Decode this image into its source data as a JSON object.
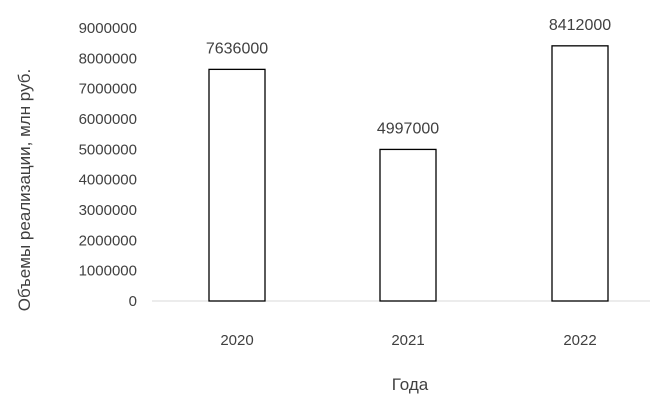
{
  "chart_data": {
    "type": "bar",
    "categories": [
      "2020",
      "2021",
      "2022"
    ],
    "values": [
      7636000,
      4997000,
      8412000
    ],
    "data_labels": [
      "7636000",
      "4997000",
      "8412000"
    ],
    "xlabel": "Года",
    "ylabel": "Объемы реализации, млн руб.",
    "ylim": [
      0,
      9000000
    ],
    "yticks": [
      "0",
      "1000000",
      "2000000",
      "3000000",
      "4000000",
      "5000000",
      "6000000",
      "7000000",
      "8000000",
      "9000000"
    ],
    "grid": false,
    "legend": "none",
    "colors": {
      "bar_fill": "#ffffff",
      "bar_stroke": "#000000",
      "text": "#404040",
      "axis": "#d9d9d9"
    }
  }
}
